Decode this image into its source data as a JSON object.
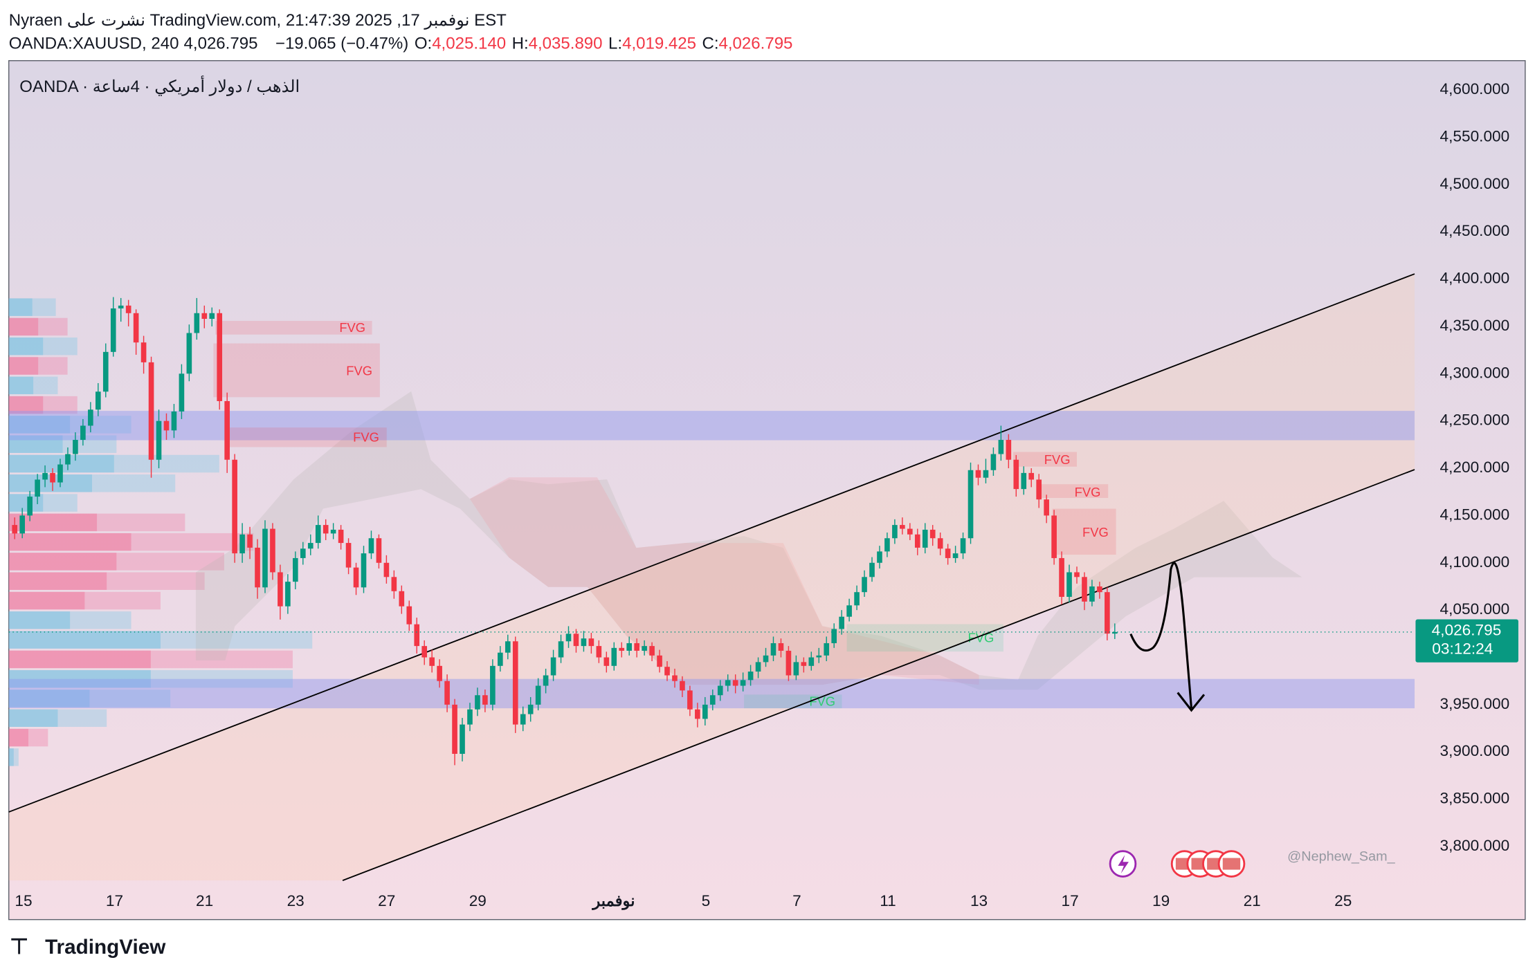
{
  "header": {
    "title": "Nyraen نشرت على TradingView.com, نوفمبر 17, 2025 21:47:39 EST",
    "symbol": "OANDA:XAUUSD, 240",
    "price": "4,026.795",
    "change": "−19.065 (−0.47%)",
    "ohlc": [
      {
        "label": "O:",
        "value": "4,025.140"
      },
      {
        "label": "H:",
        "value": "4,035.890"
      },
      {
        "label": "L:",
        "value": "4,019.425"
      },
      {
        "label": "C:",
        "value": "4,026.795"
      }
    ]
  },
  "chart_data": {
    "type": "candlestick",
    "title": "OANDA · الذهب / دولار أمريكي · 4ساعة",
    "up_color": "#089981",
    "down_color": "#f23645",
    "ylim": [
      3761,
      4631
    ],
    "yticks": [
      {
        "value": 4600,
        "label": "4,600.000"
      },
      {
        "value": 4550,
        "label": "4,550.000"
      },
      {
        "value": 4500,
        "label": "4,500.000"
      },
      {
        "value": 4450,
        "label": "4,450.000"
      },
      {
        "value": 4400,
        "label": "4,400.000"
      },
      {
        "value": 4350,
        "label": "4,350.000"
      },
      {
        "value": 4300,
        "label": "4,300.000"
      },
      {
        "value": 4250,
        "label": "4,250.000"
      },
      {
        "value": 4200,
        "label": "4,200.000"
      },
      {
        "value": 4150,
        "label": "4,150.000"
      },
      {
        "value": 4100,
        "label": "4,100.000"
      },
      {
        "value": 4050,
        "label": "4,050.000"
      },
      {
        "value": 3950,
        "label": "3,950.000"
      },
      {
        "value": 3900,
        "label": "3,900.000"
      },
      {
        "value": 3850,
        "label": "3,850.000"
      },
      {
        "value": 3800,
        "label": "3,800.000"
      }
    ],
    "xtick_labels": [
      "15",
      "17",
      "21",
      "23",
      "27",
      "29",
      "نوفمبر",
      "5",
      "7",
      "11",
      "13",
      "17",
      "19",
      "21",
      "25"
    ],
    "last_price": {
      "value": 4026.795,
      "label": "4,026.795",
      "countdown": "03:12:24"
    },
    "annotations": [
      "FVG",
      "FVG",
      "FVG",
      "FVG",
      "FVG",
      "FVG",
      "FVG",
      "FVG"
    ],
    "watermark": "@Nephew_Sam_",
    "ohlc": [
      [
        4140,
        4148,
        4125,
        4131
      ],
      [
        4131,
        4158,
        4126,
        4150
      ],
      [
        4150,
        4176,
        4144,
        4170
      ],
      [
        4170,
        4194,
        4162,
        4188
      ],
      [
        4188,
        4203,
        4180,
        4195
      ],
      [
        4195,
        4200,
        4176,
        4185
      ],
      [
        4185,
        4210,
        4180,
        4204
      ],
      [
        4204,
        4222,
        4198,
        4215
      ],
      [
        4215,
        4238,
        4208,
        4230
      ],
      [
        4230,
        4252,
        4224,
        4245
      ],
      [
        4245,
        4270,
        4238,
        4262
      ],
      [
        4262,
        4290,
        4255,
        4281
      ],
      [
        4281,
        4332,
        4275,
        4323
      ],
      [
        4323,
        4381,
        4318,
        4369
      ],
      [
        4369,
        4380,
        4355,
        4372
      ],
      [
        4372,
        4378,
        4350,
        4364
      ],
      [
        4364,
        4368,
        4320,
        4333
      ],
      [
        4333,
        4340,
        4300,
        4312
      ],
      [
        4312,
        4318,
        4190,
        4209
      ],
      [
        4209,
        4262,
        4200,
        4250
      ],
      [
        4250,
        4258,
        4230,
        4240
      ],
      [
        4240,
        4268,
        4232,
        4260
      ],
      [
        4260,
        4310,
        4252,
        4300
      ],
      [
        4300,
        4352,
        4292,
        4343
      ],
      [
        4343,
        4380,
        4336,
        4364
      ],
      [
        4364,
        4372,
        4348,
        4358
      ],
      [
        4358,
        4370,
        4350,
        4364
      ],
      [
        4364,
        4368,
        4262,
        4271
      ],
      [
        4271,
        4280,
        4195,
        4209
      ],
      [
        4209,
        4215,
        4100,
        4110
      ],
      [
        4110,
        4142,
        4100,
        4130
      ],
      [
        4130,
        4138,
        4104,
        4116
      ],
      [
        4116,
        4125,
        4062,
        4074
      ],
      [
        4074,
        4145,
        4068,
        4136
      ],
      [
        4136,
        4142,
        4082,
        4090
      ],
      [
        4090,
        4098,
        4040,
        4054
      ],
      [
        4054,
        4088,
        4046,
        4080
      ],
      [
        4080,
        4112,
        4072,
        4105
      ],
      [
        4105,
        4122,
        4098,
        4115
      ],
      [
        4115,
        4130,
        4108,
        4121
      ],
      [
        4121,
        4150,
        4115,
        4140
      ],
      [
        4140,
        4146,
        4124,
        4131
      ],
      [
        4131,
        4142,
        4125,
        4135
      ],
      [
        4135,
        4140,
        4114,
        4121
      ],
      [
        4121,
        4126,
        4088,
        4095
      ],
      [
        4095,
        4100,
        4066,
        4074
      ],
      [
        4074,
        4118,
        4068,
        4110
      ],
      [
        4110,
        4134,
        4104,
        4126
      ],
      [
        4126,
        4130,
        4094,
        4100
      ],
      [
        4100,
        4108,
        4078,
        4085
      ],
      [
        4085,
        4092,
        4062,
        4070
      ],
      [
        4070,
        4076,
        4046,
        4054
      ],
      [
        4054,
        4060,
        4028,
        4035
      ],
      [
        4035,
        4042,
        4004,
        4012
      ],
      [
        4012,
        4018,
        3992,
        4000
      ],
      [
        4000,
        4008,
        3984,
        3991
      ],
      [
        3991,
        3998,
        3968,
        3975
      ],
      [
        3975,
        3982,
        3942,
        3950
      ],
      [
        3950,
        3956,
        3886,
        3898
      ],
      [
        3898,
        3936,
        3890,
        3929
      ],
      [
        3929,
        3952,
        3922,
        3945
      ],
      [
        3945,
        3968,
        3938,
        3960
      ],
      [
        3960,
        3966,
        3942,
        3950
      ],
      [
        3950,
        3998,
        3944,
        3991
      ],
      [
        3991,
        4012,
        3985,
        4005
      ],
      [
        4005,
        4024,
        3998,
        4017
      ],
      [
        4017,
        4022,
        3920,
        3929
      ],
      [
        3929,
        3948,
        3922,
        3940
      ],
      [
        3940,
        3958,
        3932,
        3950
      ],
      [
        3950,
        3978,
        3944,
        3970
      ],
      [
        3970,
        3988,
        3962,
        3981
      ],
      [
        3981,
        4008,
        3975,
        4000
      ],
      [
        4000,
        4024,
        3994,
        4017
      ],
      [
        4017,
        4033,
        4010,
        4025
      ],
      [
        4025,
        4030,
        4005,
        4012
      ],
      [
        4012,
        4028,
        4006,
        4020
      ],
      [
        4020,
        4026,
        4004,
        4012
      ],
      [
        4012,
        4018,
        3994,
        4000
      ],
      [
        4000,
        4006,
        3984,
        3991
      ],
      [
        3991,
        4016,
        3986,
        4010
      ],
      [
        4010,
        4016,
        4000,
        4007
      ],
      [
        4007,
        4022,
        4002,
        4015
      ],
      [
        4015,
        4020,
        4000,
        4007
      ],
      [
        4007,
        4018,
        4002,
        4012
      ],
      [
        4012,
        4016,
        3996,
        4002
      ],
      [
        4002,
        4008,
        3984,
        3990
      ],
      [
        3990,
        3996,
        3975,
        3981
      ],
      [
        3981,
        3988,
        3968,
        3975
      ],
      [
        3975,
        3980,
        3958,
        3965
      ],
      [
        3965,
        3970,
        3938,
        3945
      ],
      [
        3945,
        3952,
        3926,
        3935
      ],
      [
        3935,
        3958,
        3928,
        3950
      ],
      [
        3950,
        3966,
        3944,
        3960
      ],
      [
        3960,
        3976,
        3954,
        3970
      ],
      [
        3970,
        3982,
        3964,
        3976
      ],
      [
        3976,
        3982,
        3962,
        3970
      ],
      [
        3970,
        3984,
        3964,
        3976
      ],
      [
        3976,
        3992,
        3970,
        3985
      ],
      [
        3985,
        4000,
        3978,
        3995
      ],
      [
        3995,
        4010,
        3990,
        4002
      ],
      [
        4002,
        4022,
        3996,
        4015
      ],
      [
        4015,
        4020,
        4000,
        4007
      ],
      [
        4007,
        4012,
        3975,
        3981
      ],
      [
        3981,
        4002,
        3976,
        3995
      ],
      [
        3995,
        4000,
        3984,
        3991
      ],
      [
        3991,
        4006,
        3986,
        4000
      ],
      [
        4000,
        4010,
        3994,
        4002
      ],
      [
        4002,
        4022,
        3996,
        4015
      ],
      [
        4015,
        4036,
        4010,
        4030
      ],
      [
        4030,
        4050,
        4024,
        4043
      ],
      [
        4043,
        4062,
        4038,
        4055
      ],
      [
        4055,
        4076,
        4050,
        4069
      ],
      [
        4069,
        4092,
        4064,
        4085
      ],
      [
        4085,
        4106,
        4080,
        4100
      ],
      [
        4100,
        4118,
        4094,
        4112
      ],
      [
        4112,
        4132,
        4106,
        4126
      ],
      [
        4126,
        4146,
        4120,
        4140
      ],
      [
        4140,
        4148,
        4130,
        4136
      ],
      [
        4136,
        4142,
        4124,
        4130
      ],
      [
        4130,
        4136,
        4108,
        4116
      ],
      [
        4116,
        4142,
        4110,
        4135
      ],
      [
        4135,
        4140,
        4118,
        4126
      ],
      [
        4126,
        4132,
        4108,
        4115
      ],
      [
        4115,
        4120,
        4098,
        4105
      ],
      [
        4105,
        4118,
        4100,
        4110
      ],
      [
        4110,
        4132,
        4104,
        4126
      ],
      [
        4126,
        4206,
        4120,
        4198
      ],
      [
        4198,
        4204,
        4182,
        4190
      ],
      [
        4190,
        4210,
        4184,
        4198
      ],
      [
        4198,
        4222,
        4192,
        4215
      ],
      [
        4215,
        4245,
        4208,
        4230
      ],
      [
        4230,
        4236,
        4200,
        4209
      ],
      [
        4209,
        4214,
        4170,
        4178
      ],
      [
        4178,
        4202,
        4172,
        4195
      ],
      [
        4195,
        4200,
        4180,
        4188
      ],
      [
        4188,
        4194,
        4158,
        4167
      ],
      [
        4167,
        4172,
        4142,
        4150
      ],
      [
        4150,
        4156,
        4098,
        4105
      ],
      [
        4105,
        4112,
        4056,
        4064
      ],
      [
        4064,
        4098,
        4058,
        4090
      ],
      [
        4090,
        4096,
        4078,
        4085
      ],
      [
        4085,
        4090,
        4050,
        4059
      ],
      [
        4059,
        4082,
        4054,
        4075
      ],
      [
        4075,
        4080,
        4062,
        4069
      ],
      [
        4069,
        4074,
        4018,
        4025.14
      ],
      [
        4025.14,
        4035.89,
        4019.425,
        4026.795
      ]
    ]
  },
  "footer": {
    "brand": "TradingView"
  }
}
